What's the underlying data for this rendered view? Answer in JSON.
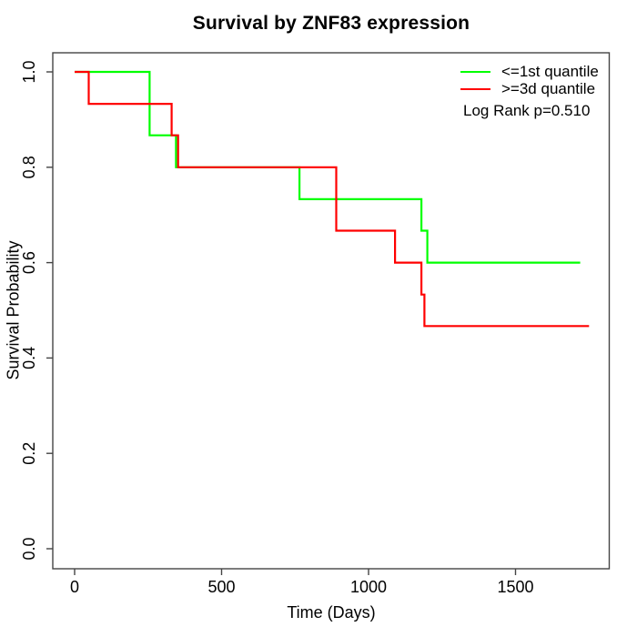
{
  "page": {
    "background": "#ffffff",
    "text_color": "#000000",
    "axis_color": "#444444"
  },
  "chart_data": {
    "type": "line",
    "subtype": "kaplan-meier-step",
    "title": "Survival by ZNF83 expression",
    "xlabel": "Time (Days)",
    "ylabel": "Survival Probability",
    "x_ticks": [
      0,
      500,
      1000,
      1500
    ],
    "y_ticks": [
      "0.0",
      "0.2",
      "0.4",
      "0.6",
      "0.8",
      "1.0"
    ],
    "xlim": [
      0,
      1760
    ],
    "ylim": [
      0,
      1
    ],
    "grid": false,
    "legend": {
      "position": "top-right",
      "entries": [
        {
          "label": "<=1st quantile",
          "color": "#00ff00"
        },
        {
          "label": ">=3d quantile",
          "color": "#ff0000"
        }
      ]
    },
    "annotation": "Log Rank p=0.510",
    "series": [
      {
        "id": "le-1st-quantile",
        "name": "<=1st quantile",
        "color": "#00ff00",
        "step_points": [
          [
            0,
            1.0
          ],
          [
            255,
            1.0
          ],
          [
            255,
            0.867
          ],
          [
            345,
            0.867
          ],
          [
            345,
            0.8
          ],
          [
            765,
            0.8
          ],
          [
            765,
            0.733
          ],
          [
            1180,
            0.733
          ],
          [
            1180,
            0.667
          ],
          [
            1200,
            0.667
          ],
          [
            1200,
            0.6
          ],
          [
            1720,
            0.6
          ]
        ]
      },
      {
        "id": "ge-3d-quantile",
        "name": ">=3d quantile",
        "color": "#ff0000",
        "step_points": [
          [
            0,
            1.0
          ],
          [
            48,
            1.0
          ],
          [
            48,
            0.933
          ],
          [
            330,
            0.933
          ],
          [
            330,
            0.867
          ],
          [
            352,
            0.867
          ],
          [
            352,
            0.8
          ],
          [
            890,
            0.8
          ],
          [
            890,
            0.667
          ],
          [
            1090,
            0.667
          ],
          [
            1090,
            0.6
          ],
          [
            1180,
            0.6
          ],
          [
            1180,
            0.533
          ],
          [
            1190,
            0.533
          ],
          [
            1190,
            0.467
          ],
          [
            1750,
            0.467
          ]
        ]
      }
    ]
  }
}
